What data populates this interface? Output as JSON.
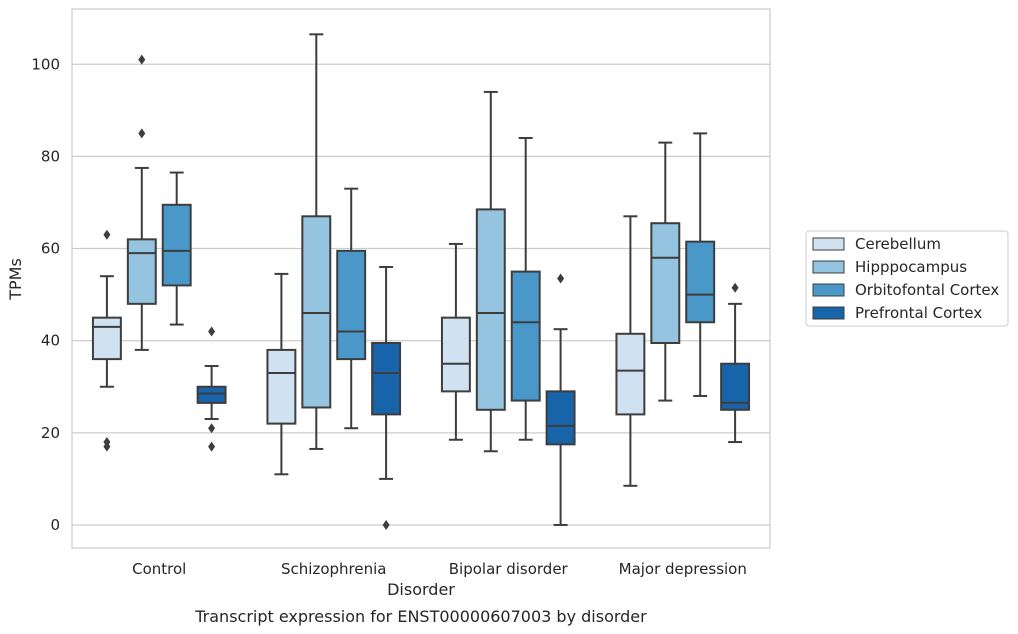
{
  "chart_data": {
    "type": "box",
    "xlabel": "Disorder",
    "ylabel": "TPMs",
    "caption": "Transcript expression for ENST00000607003 by disorder",
    "ylim": [
      -5,
      112
    ],
    "yticks": [
      0,
      20,
      40,
      60,
      80,
      100
    ],
    "grid": "horizontal",
    "legend_position": "right",
    "categories": [
      "Control",
      "Schizophrenia",
      "Bipolar disorder",
      "Major depression"
    ],
    "series": [
      {
        "name": "Cerebellum",
        "color": "#d0e1f2",
        "boxes": [
          {
            "whisker_low": 30,
            "q1": 36,
            "median": 43,
            "q3": 45,
            "whisker_high": 54,
            "outliers": [
              63,
              18,
              17
            ]
          },
          {
            "whisker_low": 11,
            "q1": 22,
            "median": 33,
            "q3": 38,
            "whisker_high": 54.5,
            "outliers": []
          },
          {
            "whisker_low": 18.5,
            "q1": 29,
            "median": 35,
            "q3": 45,
            "whisker_high": 61,
            "outliers": []
          },
          {
            "whisker_low": 8.5,
            "q1": 24,
            "median": 33.5,
            "q3": 41.5,
            "whisker_high": 67,
            "outliers": []
          }
        ]
      },
      {
        "name": "Hipppocampus",
        "color": "#94c4df",
        "boxes": [
          {
            "whisker_low": 38,
            "q1": 48,
            "median": 59,
            "q3": 62,
            "whisker_high": 77.5,
            "outliers": [
              101,
              85
            ]
          },
          {
            "whisker_low": 16.5,
            "q1": 25.5,
            "median": 46,
            "q3": 67,
            "whisker_high": 106.5,
            "outliers": []
          },
          {
            "whisker_low": 16,
            "q1": 25,
            "median": 46,
            "q3": 68.5,
            "whisker_high": 94,
            "outliers": []
          },
          {
            "whisker_low": 27,
            "q1": 39.5,
            "median": 58,
            "q3": 65.5,
            "whisker_high": 83,
            "outliers": []
          }
        ]
      },
      {
        "name": "Orbitofontal Cortex",
        "color": "#4a98c9",
        "boxes": [
          {
            "whisker_low": 43.5,
            "q1": 52,
            "median": 59.5,
            "q3": 69.5,
            "whisker_high": 76.5,
            "outliers": []
          },
          {
            "whisker_low": 21,
            "q1": 36,
            "median": 42,
            "q3": 59.5,
            "whisker_high": 73,
            "outliers": []
          },
          {
            "whisker_low": 18.5,
            "q1": 27,
            "median": 44,
            "q3": 55,
            "whisker_high": 84,
            "outliers": []
          },
          {
            "whisker_low": 28,
            "q1": 44,
            "median": 50,
            "q3": 61.5,
            "whisker_high": 85,
            "outliers": []
          }
        ]
      },
      {
        "name": "Prefrontal Cortex",
        "color": "#1764ab",
        "boxes": [
          {
            "whisker_low": 23,
            "q1": 26.5,
            "median": 28.5,
            "q3": 30,
            "whisker_high": 34.5,
            "outliers": [
              42,
              21,
              17
            ]
          },
          {
            "whisker_low": 10,
            "q1": 24,
            "median": 33,
            "q3": 39.5,
            "whisker_high": 56,
            "outliers": [
              0
            ]
          },
          {
            "whisker_low": 0,
            "q1": 17.5,
            "median": 21.5,
            "q3": 29,
            "whisker_high": 42.5,
            "outliers": [
              53.5
            ]
          },
          {
            "whisker_low": 18,
            "q1": 25,
            "median": 26.5,
            "q3": 35,
            "whisker_high": 48,
            "outliers": [
              51.5
            ]
          }
        ]
      }
    ]
  }
}
